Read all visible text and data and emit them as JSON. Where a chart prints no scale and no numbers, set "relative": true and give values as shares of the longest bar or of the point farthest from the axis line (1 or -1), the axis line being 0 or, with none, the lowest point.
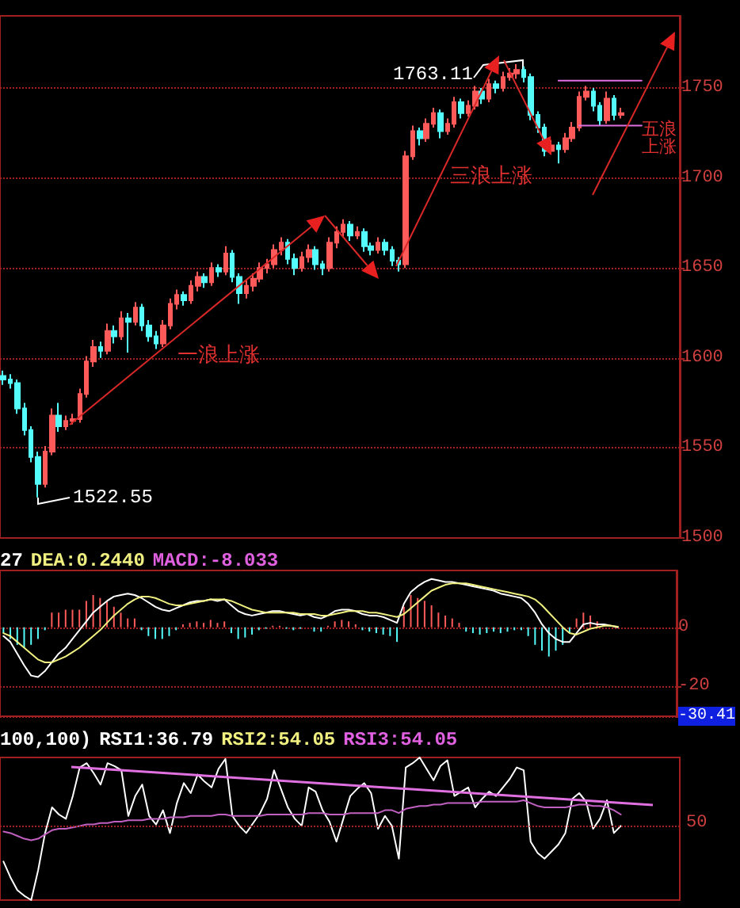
{
  "chart_data": [
    {
      "type": "candlestick",
      "categories": [
        null,
        null,
        null,
        null,
        null,
        null,
        null,
        null,
        null,
        null,
        null,
        null,
        null,
        null,
        null,
        null,
        null,
        null,
        null,
        null,
        null,
        null,
        null,
        null,
        null,
        null,
        null,
        null,
        null,
        null,
        null,
        null,
        null,
        null,
        null,
        null,
        null,
        null,
        null,
        null,
        null,
        null,
        null,
        null,
        null,
        null,
        null,
        null,
        null,
        null,
        null,
        null,
        null,
        null,
        null,
        null,
        null,
        null,
        null,
        null,
        null,
        null,
        null,
        null,
        null,
        null,
        null,
        null,
        null,
        null,
        null,
        null,
        null,
        null,
        null,
        null,
        null,
        null,
        null,
        null,
        null,
        null,
        null,
        null,
        null,
        null,
        null,
        null,
        null,
        null,
        null,
        null,
        null,
        null,
        null,
        null,
        null,
        null
      ],
      "ohlc": [
        [
          1590,
          1593,
          1585,
          1588
        ],
        [
          1588,
          1591,
          1583,
          1586
        ],
        [
          1586,
          1588,
          1569,
          1572
        ],
        [
          1572,
          1575,
          1557,
          1560
        ],
        [
          1560,
          1562,
          1542,
          1545
        ],
        [
          1545,
          1548,
          1522.55,
          1530
        ],
        [
          1530,
          1551,
          1528,
          1548
        ],
        [
          1548,
          1572,
          1546,
          1568
        ],
        [
          1568,
          1575,
          1559,
          1562
        ],
        [
          1562,
          1568,
          1560,
          1565
        ],
        [
          1565,
          1569,
          1563,
          1566
        ],
        [
          1566,
          1583,
          1564,
          1580
        ],
        [
          1580,
          1601,
          1578,
          1598
        ],
        [
          1598,
          1610,
          1595,
          1606
        ],
        [
          1606,
          1609,
          1600,
          1604
        ],
        [
          1604,
          1619,
          1602,
          1615
        ],
        [
          1615,
          1618,
          1608,
          1612
        ],
        [
          1612,
          1626,
          1610,
          1622
        ],
        [
          1622,
          1625,
          1603,
          1620
        ],
        [
          1620,
          1631,
          1618,
          1628
        ],
        [
          1628,
          1630,
          1615,
          1618
        ],
        [
          1618,
          1621,
          1609,
          1612
        ],
        [
          1612,
          1615,
          1605,
          1608
        ],
        [
          1608,
          1621,
          1606,
          1618
        ],
        [
          1618,
          1633,
          1616,
          1630
        ],
        [
          1630,
          1638,
          1627,
          1635
        ],
        [
          1635,
          1637,
          1629,
          1632
        ],
        [
          1632,
          1643,
          1630,
          1640
        ],
        [
          1640,
          1648,
          1637,
          1645
        ],
        [
          1645,
          1647,
          1639,
          1642
        ],
        [
          1642,
          1653,
          1640,
          1650
        ],
        [
          1650,
          1652,
          1645,
          1648
        ],
        [
          1648,
          1662,
          1646,
          1658
        ],
        [
          1658,
          1660,
          1642,
          1645
        ],
        [
          1645,
          1647,
          1630,
          1636
        ],
        [
          1636,
          1643,
          1633,
          1640
        ],
        [
          1640,
          1647,
          1637,
          1644
        ],
        [
          1644,
          1653,
          1642,
          1650
        ],
        [
          1650,
          1655,
          1647,
          1652
        ],
        [
          1652,
          1663,
          1650,
          1660
        ],
        [
          1660,
          1667,
          1657,
          1664
        ],
        [
          1664,
          1666,
          1652,
          1655
        ],
        [
          1655,
          1658,
          1646,
          1650
        ],
        [
          1650,
          1659,
          1648,
          1656
        ],
        [
          1656,
          1663,
          1653,
          1660
        ],
        [
          1660,
          1662,
          1649,
          1652
        ],
        [
          1652,
          1654,
          1646,
          1650
        ],
        [
          1650,
          1667,
          1648,
          1664
        ],
        [
          1664,
          1673,
          1661,
          1670
        ],
        [
          1670,
          1677,
          1667,
          1674
        ],
        [
          1674,
          1676,
          1665,
          1668
        ],
        [
          1668,
          1673,
          1666,
          1670
        ],
        [
          1670,
          1672,
          1659,
          1662
        ],
        [
          1662,
          1664,
          1657,
          1660
        ],
        [
          1660,
          1667,
          1658,
          1664
        ],
        [
          1664,
          1666,
          1657,
          1660
        ],
        [
          1660,
          1662,
          1651,
          1654
        ],
        [
          1654,
          1656,
          1648,
          1652
        ],
        [
          1652,
          1715,
          1650,
          1712
        ],
        [
          1712,
          1729,
          1710,
          1726
        ],
        [
          1726,
          1728,
          1718,
          1722
        ],
        [
          1722,
          1733,
          1720,
          1730
        ],
        [
          1730,
          1739,
          1728,
          1736
        ],
        [
          1736,
          1738,
          1722,
          1726
        ],
        [
          1726,
          1733,
          1724,
          1730
        ],
        [
          1730,
          1745,
          1728,
          1742
        ],
        [
          1742,
          1744,
          1733,
          1736
        ],
        [
          1736,
          1743,
          1734,
          1740
        ],
        [
          1740,
          1751,
          1738,
          1748
        ],
        [
          1748,
          1750,
          1741,
          1744
        ],
        [
          1744,
          1755,
          1742,
          1752
        ],
        [
          1752,
          1754,
          1747,
          1750
        ],
        [
          1750,
          1759,
          1748,
          1756
        ],
        [
          1756,
          1761,
          1754,
          1758
        ],
        [
          1758,
          1763.11,
          1755,
          1760
        ],
        [
          1760,
          1762,
          1753,
          1756
        ],
        [
          1756,
          1758,
          1732,
          1735
        ],
        [
          1735,
          1737,
          1725,
          1728
        ],
        [
          1728,
          1730,
          1712,
          1715
        ],
        [
          1715,
          1721,
          1713,
          1718
        ],
        [
          1718,
          1720,
          1708,
          1716
        ],
        [
          1716,
          1725,
          1714,
          1722
        ],
        [
          1722,
          1731,
          1720,
          1728
        ],
        [
          1728,
          1748,
          1726,
          1745
        ],
        [
          1745,
          1751,
          1743,
          1748
        ],
        [
          1748,
          1750,
          1737,
          1740
        ],
        [
          1740,
          1742,
          1729,
          1732
        ],
        [
          1732,
          1748,
          1730,
          1744
        ],
        [
          1744,
          1746,
          1732,
          1735
        ],
        [
          1735,
          1739,
          1733,
          1736
        ],
        null,
        null,
        null,
        null,
        null,
        null,
        null,
        null
      ],
      "series": [
        {
          "type": "line",
          "color": "#e070e0",
          "values": [
            null,
            null,
            null,
            null,
            null,
            null,
            null,
            null,
            null,
            null,
            null,
            null,
            null,
            null,
            null,
            null,
            null,
            null,
            null,
            null,
            null,
            null,
            null,
            null,
            null,
            null,
            null,
            null,
            null,
            null,
            null,
            null,
            null,
            null,
            null,
            null,
            null,
            null,
            null,
            null,
            null,
            null,
            null,
            null,
            null,
            null,
            null,
            null,
            null,
            null,
            null,
            null,
            null,
            null,
            null,
            null,
            null,
            null,
            null,
            null,
            null,
            null,
            null,
            null,
            null,
            null,
            null,
            null,
            null,
            null,
            null,
            null,
            null,
            null,
            null,
            null,
            null,
            null,
            null,
            null,
            1754,
            1754,
            1754,
            1754,
            1754,
            1754,
            1754,
            1754,
            1754,
            1754,
            1754,
            1754,
            1754,
            null,
            null,
            null,
            null,
            null
          ]
        },
        {
          "type": "line",
          "color": "#e070e0",
          "values": [
            null,
            null,
            null,
            null,
            null,
            null,
            null,
            null,
            null,
            null,
            null,
            null,
            null,
            null,
            null,
            null,
            null,
            null,
            null,
            null,
            null,
            null,
            null,
            null,
            null,
            null,
            null,
            null,
            null,
            null,
            null,
            null,
            null,
            null,
            null,
            null,
            null,
            null,
            null,
            null,
            null,
            null,
            null,
            null,
            null,
            null,
            null,
            null,
            null,
            null,
            null,
            null,
            null,
            null,
            null,
            null,
            null,
            null,
            null,
            null,
            null,
            null,
            null,
            null,
            null,
            null,
            null,
            null,
            null,
            null,
            null,
            null,
            null,
            null,
            null,
            null,
            null,
            null,
            null,
            null,
            null,
            null,
            null,
            1729,
            1729,
            1729,
            1729,
            1729,
            1729,
            1729,
            1729,
            1729,
            1729,
            null,
            null,
            null,
            null,
            null
          ]
        }
      ],
      "ylim": [
        1500,
        1790
      ],
      "yticks": [
        1500,
        1550,
        1600,
        1650,
        1700,
        1750
      ],
      "grid": "y",
      "tick_labels": "y",
      "annotations": [
        "1763.11",
        "1522.55",
        "一浪上涨",
        "三浪上涨",
        "五浪上涨"
      ]
    },
    {
      "type": "bar",
      "title": "27 DEA:0.2440 MACD:-8.033",
      "categories": [
        null,
        null,
        null,
        null,
        null,
        null,
        null,
        null,
        null,
        null,
        null,
        null,
        null,
        null,
        null,
        null,
        null,
        null,
        null,
        null,
        null,
        null,
        null,
        null,
        null,
        null,
        null,
        null,
        null,
        null,
        null,
        null,
        null,
        null,
        null,
        null,
        null,
        null,
        null,
        null,
        null,
        null,
        null,
        null,
        null,
        null,
        null,
        null,
        null,
        null,
        null,
        null,
        null,
        null,
        null,
        null,
        null,
        null,
        null,
        null,
        null,
        null,
        null,
        null,
        null,
        null,
        null,
        null,
        null,
        null,
        null,
        null,
        null,
        null,
        null,
        null,
        null,
        null,
        null,
        null,
        null,
        null,
        null,
        null,
        null,
        null,
        null,
        null,
        null,
        null,
        null,
        null,
        null,
        null,
        null,
        null,
        null,
        null
      ],
      "series": [
        {
          "values": [
            -2,
            -4,
            -6,
            -7,
            -6,
            -4,
            -1,
            5,
            5,
            6,
            6,
            6,
            9,
            11,
            10,
            9,
            7,
            5,
            3,
            3,
            -1,
            -3,
            -4,
            -4,
            -3,
            -1,
            1,
            1.5,
            2,
            1.5,
            2.5,
            1.5,
            2,
            -2,
            -4,
            -3.5,
            -2.5,
            -1,
            -0.5,
            0.5,
            0.5,
            -0.5,
            -1,
            -0.5,
            null,
            -1.5,
            -1.5,
            0.5,
            2,
            2.5,
            2,
            1,
            -1,
            -1.5,
            -2,
            -2.5,
            -3,
            -5,
            7,
            11,
            10,
            9,
            7.5,
            5,
            4,
            3,
            1.5,
            -1.5,
            -2,
            -2.5,
            -2,
            -1.5,
            -2,
            -1.5,
            -1,
            -1,
            -3,
            -6,
            -8,
            -10,
            -8,
            -6,
            -2,
            3,
            5,
            4,
            2,
            null,
            null,
            0,
            null,
            null,
            null,
            null,
            null,
            null,
            null,
            null
          ],
          "colors": [
            "#54fcfc",
            "#54fcfc",
            "#54fcfc",
            "#54fcfc",
            "#54fcfc",
            "#54fcfc",
            "#54fcfc",
            "#ff5a5a",
            "#ff5a5a",
            "#ff5a5a",
            "#ff5a5a",
            "#ff5a5a",
            "#ff5a5a",
            "#ff5a5a",
            "#ff5a5a",
            "#ff5a5a",
            "#ff5a5a",
            "#ff5a5a",
            "#ff5a5a",
            "#ff5a5a",
            "#54fcfc",
            "#54fcfc",
            "#54fcfc",
            "#54fcfc",
            "#54fcfc",
            "#54fcfc",
            "#ff5a5a",
            "#ff5a5a",
            "#ff5a5a",
            "#ff5a5a",
            "#ff5a5a",
            "#ff5a5a",
            "#ff5a5a",
            "#54fcfc",
            "#54fcfc",
            "#54fcfc",
            "#54fcfc",
            "#54fcfc",
            "#54fcfc",
            "#ff5a5a",
            "#ff5a5a",
            "#54fcfc",
            "#54fcfc",
            "#54fcfc",
            null,
            "#54fcfc",
            "#54fcfc",
            "#ff5a5a",
            "#ff5a5a",
            "#ff5a5a",
            "#ff5a5a",
            "#ff5a5a",
            "#54fcfc",
            "#54fcfc",
            "#54fcfc",
            "#54fcfc",
            "#54fcfc",
            "#54fcfc",
            "#ff5a5a",
            "#ff5a5a",
            "#ff5a5a",
            "#ff5a5a",
            "#ff5a5a",
            "#ff5a5a",
            "#ff5a5a",
            "#ff5a5a",
            "#ff5a5a",
            "#54fcfc",
            "#54fcfc",
            "#54fcfc",
            "#54fcfc",
            "#54fcfc",
            "#54fcfc",
            "#54fcfc",
            "#54fcfc",
            "#54fcfc",
            "#54fcfc",
            "#54fcfc",
            "#54fcfc",
            "#54fcfc",
            "#54fcfc",
            "#54fcfc",
            "#54fcfc",
            "#ff5a5a",
            "#ff5a5a",
            "#ff5a5a",
            "#ff5a5a",
            null,
            null,
            "#ff5a5a",
            null,
            null,
            null,
            null,
            null,
            null,
            null,
            null
          ]
        },
        {
          "type": "line",
          "color": "#ffffff",
          "values": [
            -3,
            -5,
            -9,
            -13,
            -16.5,
            -17,
            -15,
            -12,
            -9,
            -7,
            -4,
            -1,
            2,
            5,
            7,
            9,
            10.5,
            11,
            11.5,
            11,
            10,
            8.5,
            7,
            6,
            5.5,
            6.5,
            7.5,
            8.5,
            9,
            9,
            9.5,
            9,
            9.5,
            7.5,
            5.5,
            4.5,
            4,
            4.5,
            5,
            5.5,
            5.5,
            5,
            4.5,
            4,
            4.5,
            3.5,
            3,
            4,
            5.5,
            6,
            6,
            5.5,
            4.5,
            4,
            4,
            3.5,
            2.5,
            1.5,
            8,
            12,
            14,
            15.5,
            16.5,
            16,
            15.5,
            15.5,
            15,
            14.5,
            14,
            13.5,
            13,
            12.5,
            11.5,
            11,
            10.5,
            10,
            8,
            5,
            1,
            -2,
            -4,
            -5,
            -5,
            -2,
            1,
            1.5,
            1,
            1,
            0.5,
            0,
            null,
            null,
            null,
            null,
            null,
            null,
            null,
            null
          ]
        },
        {
          "type": "line",
          "color": "#f0f080",
          "values": [
            -2,
            -3,
            -5,
            -7,
            -9,
            -11,
            -12,
            -12,
            -11,
            -10,
            -8.5,
            -7,
            -5,
            -3,
            -1,
            1.5,
            4,
            6,
            8,
            9.5,
            10.5,
            10.5,
            10,
            9,
            8,
            7.5,
            7.5,
            8,
            8.5,
            9,
            9.5,
            9.5,
            9.5,
            9,
            8,
            7,
            6,
            5.5,
            5,
            5,
            5,
            5,
            5,
            4.5,
            4.5,
            4.5,
            4,
            4,
            4.5,
            5,
            5.5,
            5.5,
            5.5,
            5,
            5,
            4.5,
            4,
            3.5,
            4.5,
            6.5,
            8.5,
            10.5,
            12.5,
            13.5,
            14.5,
            15,
            15,
            15,
            14.5,
            14,
            13.5,
            13,
            12.5,
            12,
            11.5,
            11,
            10.5,
            9.5,
            7.5,
            5,
            2.5,
            0,
            -2,
            -2.5,
            -1.5,
            -0.5,
            0,
            0.5,
            0.5,
            0.2,
            null,
            null,
            null,
            null,
            null,
            null,
            null,
            null
          ]
        }
      ],
      "ylim": [
        -30.41,
        19.4
      ],
      "yticks": [
        0,
        -20,
        -30.41
      ],
      "grid": "y",
      "tick_labels": "y"
    },
    {
      "type": "line",
      "relative": true,
      "title": "100,100) RSI1:36.79 RSI2:54.05 RSI3:54.05",
      "categories": [
        null,
        null,
        null,
        null,
        null,
        null,
        null,
        null,
        null,
        null,
        null,
        null,
        null,
        null,
        null,
        null,
        null,
        null,
        null,
        null,
        null,
        null,
        null,
        null,
        null,
        null,
        null,
        null,
        null,
        null,
        null,
        null,
        null,
        null,
        null,
        null,
        null,
        null,
        null,
        null,
        null,
        null,
        null,
        null,
        null,
        null,
        null,
        null,
        null,
        null,
        null,
        null,
        null,
        null,
        null,
        null,
        null,
        null,
        null,
        null,
        null,
        null,
        null,
        null,
        null,
        null,
        null,
        null,
        null,
        null,
        null,
        null,
        null,
        null,
        null,
        null,
        null,
        null,
        null,
        null,
        null,
        null,
        null,
        null,
        null,
        null,
        null,
        null,
        null,
        null,
        null,
        null,
        null,
        null,
        null,
        null,
        null,
        null
      ],
      "series": [
        {
          "color": "#ffffff",
          "values": [
            0.27,
            0.16,
            0.07,
            0.03,
            0,
            0.21,
            0.47,
            0.65,
            0.6,
            0.57,
            0.73,
            0.93,
            0.96,
            0.89,
            0.81,
            0.96,
            0.94,
            0.91,
            0.59,
            0.73,
            0.81,
            0.59,
            0.53,
            0.63,
            0.47,
            0.68,
            0.82,
            0.75,
            0.88,
            0.83,
            0.79,
            0.92,
            0.99,
            0.59,
            0.52,
            0.47,
            0.54,
            0.61,
            0.71,
            0.91,
            0.78,
            0.65,
            0.57,
            0.52,
            0.79,
            0.76,
            0.63,
            0.55,
            0.41,
            0.57,
            0.73,
            0.78,
            0.82,
            0.75,
            0.5,
            0.59,
            0.52,
            0.29,
            0.93,
            0.96,
            1,
            0.92,
            0.84,
            0.94,
            0.98,
            0.73,
            0.76,
            0.79,
            0.65,
            0.71,
            0.76,
            0.73,
            0.79,
            0.85,
            0.93,
            0.91,
            0.41,
            0.33,
            0.29,
            0.34,
            0.39,
            0.47,
            0.71,
            0.75,
            0.69,
            0.5,
            0.57,
            0.7,
            0.47,
            0.52,
            null,
            null,
            null,
            null,
            null,
            null,
            null,
            null
          ]
        },
        {
          "color": "#c060c0",
          "values": [
            0.48,
            0.47,
            0.45,
            0.43,
            0.42,
            0.43,
            0.46,
            0.49,
            0.5,
            0.5,
            0.51,
            0.52,
            0.53,
            0.53,
            0.54,
            0.54,
            0.55,
            0.55,
            0.56,
            0.56,
            0.56,
            0.57,
            0.57,
            0.57,
            0.58,
            0.58,
            0.58,
            0.59,
            0.59,
            0.59,
            0.59,
            0.6,
            0.6,
            0.59,
            0.59,
            0.59,
            0.59,
            0.59,
            0.6,
            0.6,
            0.6,
            0.6,
            0.6,
            0.6,
            0.61,
            0.61,
            0.61,
            0.6,
            0.6,
            0.6,
            0.61,
            0.61,
            0.61,
            0.61,
            0.61,
            0.63,
            0.63,
            0.61,
            0.64,
            0.65,
            0.66,
            0.66,
            0.67,
            0.67,
            0.68,
            0.68,
            0.68,
            0.68,
            0.68,
            0.69,
            0.69,
            0.69,
            0.69,
            0.69,
            0.69,
            0.7,
            0.68,
            0.66,
            0.65,
            0.65,
            0.65,
            0.65,
            0.66,
            0.67,
            0.67,
            0.66,
            0.66,
            0.65,
            0.63,
            0.6,
            null,
            null,
            null,
            null,
            null,
            null,
            null,
            null
          ]
        }
      ],
      "ref_lines": [
        {
          "axis": "y",
          "value": 0.52,
          "line_style": "dotted"
        }
      ],
      "annotations": [
        "50"
      ],
      "tick_labels": "y"
    }
  ]
}
